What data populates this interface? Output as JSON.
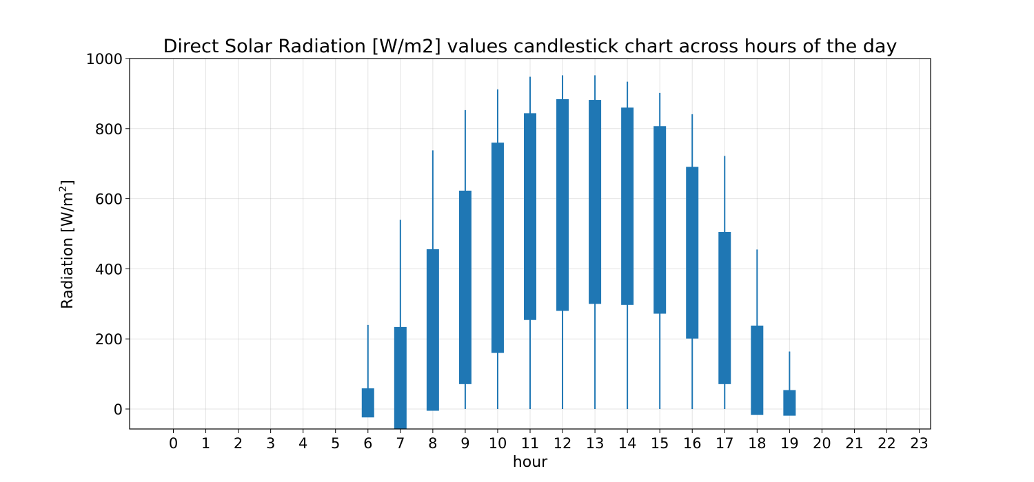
{
  "chart_data": {
    "type": "candlestick",
    "title": "Direct Solar Radiation [W/m2] values candlestick chart across hours of the day",
    "xlabel": "hour",
    "ylabel_main": "Radiation [W/m",
    "ylabel_sup": "2",
    "ylabel_end": "]",
    "ylim": [
      -57,
      1000
    ],
    "xlim": [
      -1.35,
      23.35
    ],
    "yticks": [
      "0",
      "200",
      "400",
      "600",
      "800",
      "1000"
    ],
    "ytick_values": [
      0,
      200,
      400,
      600,
      800,
      1000
    ],
    "categories": [
      "0",
      "1",
      "2",
      "3",
      "4",
      "5",
      "6",
      "7",
      "8",
      "9",
      "10",
      "11",
      "12",
      "13",
      "14",
      "15",
      "16",
      "17",
      "18",
      "19",
      "20",
      "21",
      "22",
      "23"
    ],
    "grid": true,
    "color": "#1f77b4",
    "candles": [
      {
        "hour": 6,
        "low": 0,
        "high": 240,
        "box_low": -24,
        "box_high": 59
      },
      {
        "hour": 7,
        "low": 0,
        "high": 540,
        "box_low": -57,
        "box_high": 234
      },
      {
        "hour": 8,
        "low": 0,
        "high": 738,
        "box_low": -5,
        "box_high": 456
      },
      {
        "hour": 9,
        "low": 0,
        "high": 853,
        "box_low": 71,
        "box_high": 623
      },
      {
        "hour": 10,
        "low": 0,
        "high": 912,
        "box_low": 160,
        "box_high": 760
      },
      {
        "hour": 11,
        "low": 0,
        "high": 948,
        "box_low": 254,
        "box_high": 844
      },
      {
        "hour": 12,
        "low": 0,
        "high": 952,
        "box_low": 280,
        "box_high": 884
      },
      {
        "hour": 13,
        "low": 0,
        "high": 952,
        "box_low": 300,
        "box_high": 882
      },
      {
        "hour": 14,
        "low": 0,
        "high": 934,
        "box_low": 297,
        "box_high": 860
      },
      {
        "hour": 15,
        "low": 0,
        "high": 902,
        "box_low": 272,
        "box_high": 807
      },
      {
        "hour": 16,
        "low": 0,
        "high": 841,
        "box_low": 201,
        "box_high": 691
      },
      {
        "hour": 17,
        "low": 0,
        "high": 722,
        "box_low": 71,
        "box_high": 505
      },
      {
        "hour": 18,
        "low": 0,
        "high": 455,
        "box_low": -17,
        "box_high": 238
      },
      {
        "hour": 19,
        "low": 0,
        "high": 164,
        "box_low": -19,
        "box_high": 54
      }
    ]
  }
}
